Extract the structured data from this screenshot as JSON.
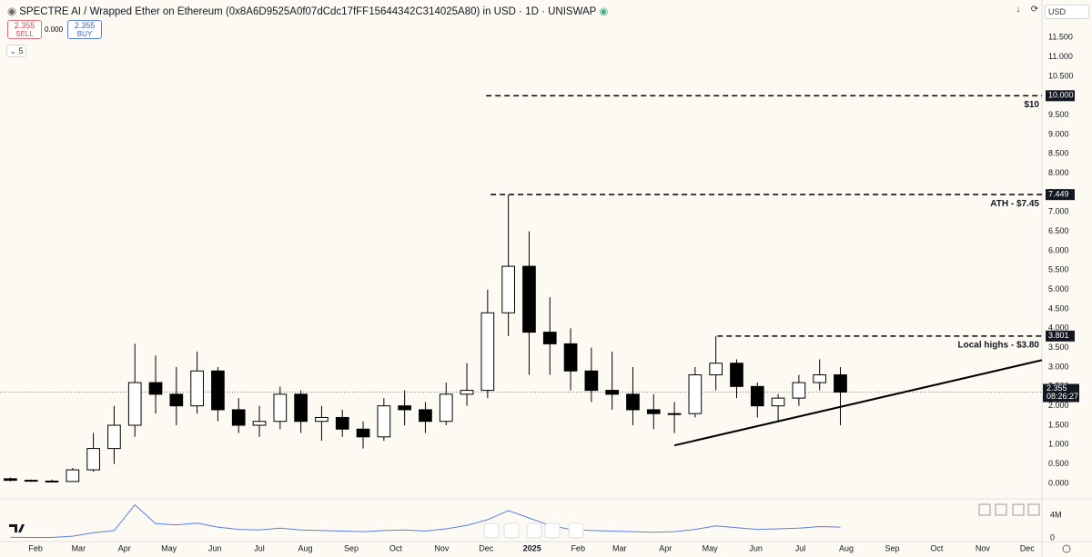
{
  "header": {
    "title": "SPECTRE AI / Wrapped Ether on Ethereum (0x8A6D9525A0f07dCdc17fFF15644342C314025A80) in USD · 1D · UNISWAP",
    "sell_price": "2.355",
    "sell_label": "SELL",
    "spread": "0.000",
    "buy_price": "2.355",
    "buy_label": "BUY",
    "indicators": "5",
    "currency": "USD"
  },
  "chart_data": [
    {
      "type": "candlestick",
      "x": [
        "2024-01-15",
        "2024-01-29",
        "2024-02-12",
        "2024-02-26",
        "2024-03-11",
        "2024-03-25",
        "2024-04-08",
        "2024-04-22",
        "2024-05-06",
        "2024-05-20",
        "2024-06-03",
        "2024-06-17",
        "2024-07-01",
        "2024-07-15",
        "2024-07-29",
        "2024-08-12",
        "2024-08-26",
        "2024-09-09",
        "2024-09-23",
        "2024-10-07",
        "2024-10-21",
        "2024-11-04",
        "2024-11-18",
        "2024-12-02",
        "2024-12-16",
        "2024-12-30",
        "2025-01-13",
        "2025-01-27",
        "2025-02-10",
        "2025-02-24",
        "2025-03-10",
        "2025-03-24",
        "2025-04-07",
        "2025-04-21",
        "2025-05-05",
        "2025-05-19",
        "2025-06-02",
        "2025-06-16",
        "2025-06-30",
        "2025-07-14",
        "2025-07-28"
      ],
      "open": [
        0.12,
        0.08,
        0.06,
        0.05,
        0.35,
        0.9,
        1.5,
        2.6,
        2.3,
        2.0,
        2.9,
        1.9,
        1.5,
        1.6,
        2.3,
        1.6,
        1.7,
        1.4,
        1.2,
        2.0,
        1.9,
        1.6,
        2.3,
        2.4,
        4.4,
        5.6,
        3.9,
        3.6,
        2.9,
        2.4,
        2.3,
        1.9,
        1.8,
        1.8,
        2.8,
        3.1,
        2.5,
        2.0,
        2.2,
        2.6,
        2.8
      ],
      "high": [
        0.15,
        0.1,
        0.1,
        0.4,
        1.3,
        2.0,
        3.6,
        3.3,
        3.0,
        3.4,
        3.0,
        2.2,
        2.0,
        2.5,
        2.4,
        2.0,
        1.9,
        1.6,
        2.2,
        2.4,
        2.1,
        2.6,
        3.1,
        5.0,
        7.45,
        6.5,
        4.8,
        4.0,
        3.5,
        3.4,
        3.0,
        2.3,
        2.1,
        3.0,
        3.8,
        3.2,
        2.6,
        2.3,
        2.8,
        3.2,
        3.0
      ],
      "low": [
        0.05,
        0.04,
        0.03,
        0.05,
        0.3,
        0.5,
        1.2,
        1.8,
        1.5,
        1.8,
        1.6,
        1.3,
        1.2,
        1.4,
        1.3,
        1.1,
        1.2,
        0.9,
        1.1,
        1.5,
        1.3,
        1.5,
        2.0,
        2.2,
        3.8,
        2.8,
        2.8,
        2.4,
        2.1,
        1.9,
        1.5,
        1.4,
        1.3,
        1.7,
        2.4,
        2.2,
        1.7,
        1.6,
        2.0,
        2.4,
        1.5
      ],
      "close": [
        0.08,
        0.06,
        0.05,
        0.35,
        0.9,
        1.5,
        2.6,
        2.3,
        2.0,
        2.9,
        1.9,
        1.5,
        1.6,
        2.3,
        1.6,
        1.7,
        1.4,
        1.2,
        2.0,
        1.9,
        1.6,
        2.3,
        2.4,
        4.4,
        5.6,
        3.9,
        3.6,
        2.9,
        2.4,
        2.3,
        1.9,
        1.8,
        1.8,
        2.8,
        3.1,
        2.5,
        2.0,
        2.2,
        2.6,
        2.8,
        2.355
      ],
      "up_color": "#ffffff",
      "down_color": "#000000",
      "wick_color": "#000000",
      "xlim": [
        "2024-01-08",
        "2025-12-11"
      ],
      "xticks": [
        {
          "value": "2024-02-01",
          "label": "Feb"
        },
        {
          "value": "2024-03-01",
          "label": "Mar"
        },
        {
          "value": "2024-04-01",
          "label": "Apr"
        },
        {
          "value": "2024-05-01",
          "label": "May"
        },
        {
          "value": "2024-06-01",
          "label": "Jun"
        },
        {
          "value": "2024-07-01",
          "label": "Jul"
        },
        {
          "value": "2024-08-01",
          "label": "Aug"
        },
        {
          "value": "2024-09-01",
          "label": "Sep"
        },
        {
          "value": "2024-10-01",
          "label": "Oct"
        },
        {
          "value": "2024-11-01",
          "label": "Nov"
        },
        {
          "value": "2024-12-01",
          "label": "Dec"
        },
        {
          "value": "2025-01-01",
          "label": "2025"
        },
        {
          "value": "2025-02-01",
          "label": "Feb"
        },
        {
          "value": "2025-03-01",
          "label": "Mar"
        },
        {
          "value": "2025-04-01",
          "label": "Apr"
        },
        {
          "value": "2025-05-01",
          "label": "May"
        },
        {
          "value": "2025-06-01",
          "label": "Jun"
        },
        {
          "value": "2025-07-01",
          "label": "Jul"
        },
        {
          "value": "2025-08-01",
          "label": "Aug"
        },
        {
          "value": "2025-09-01",
          "label": "Sep"
        },
        {
          "value": "2025-10-01",
          "label": "Oct"
        },
        {
          "value": "2025-11-01",
          "label": "Nov"
        },
        {
          "value": "2025-12-01",
          "label": "Dec"
        }
      ],
      "ylim": [
        -0.375,
        12.0
      ],
      "yticks": [
        {
          "value": 0,
          "label": "0.000"
        },
        {
          "value": 0.5,
          "label": "0.500"
        },
        {
          "value": 1,
          "label": "1.000"
        },
        {
          "value": 1.5,
          "label": "1.500"
        },
        {
          "value": 2,
          "label": "2.000"
        },
        {
          "value": 2.5,
          "label": "2.500"
        },
        {
          "value": 3,
          "label": "3.000"
        },
        {
          "value": 3.5,
          "label": "3.500"
        },
        {
          "value": 4,
          "label": "4.000"
        },
        {
          "value": 4.5,
          "label": "4.500"
        },
        {
          "value": 5,
          "label": "5.000"
        },
        {
          "value": 5.5,
          "label": "5.500"
        },
        {
          "value": 6,
          "label": "6.000"
        },
        {
          "value": 6.5,
          "label": "6.500"
        },
        {
          "value": 7,
          "label": "7.000"
        },
        {
          "value": 7.5,
          "label": "7.500"
        },
        {
          "value": 8,
          "label": "8.000"
        },
        {
          "value": 8.5,
          "label": "8.500"
        },
        {
          "value": 9,
          "label": "9.000"
        },
        {
          "value": 9.5,
          "label": "9.500"
        },
        {
          "value": 10,
          "label": "10.000"
        },
        {
          "value": 10.5,
          "label": "10.500"
        },
        {
          "value": 11,
          "label": "11.000"
        },
        {
          "value": 11.5,
          "label": "11.500"
        }
      ],
      "levels": [
        {
          "text": "$10",
          "value": 10,
          "tag": "10.000",
          "x_start": "2024-12-01"
        },
        {
          "text": "ATH - $7.45",
          "value": 7.449,
          "tag": "7.449",
          "x_start": "2024-12-04"
        },
        {
          "text": "Local highs - $3.80",
          "value": 3.801,
          "tag": "3.801",
          "x_start": "2025-05-06"
        }
      ],
      "trendline": {
        "x": [
          "2025-04-07",
          "2025-12-11"
        ],
        "y": [
          0.98,
          3.18
        ]
      },
      "last_price": {
        "value": 2.355,
        "label": "2.355",
        "countdown": "08:26:27"
      }
    },
    {
      "type": "line",
      "x": [
        "2024-01-15",
        "2024-01-29",
        "2024-02-12",
        "2024-02-26",
        "2024-03-11",
        "2024-03-25",
        "2024-04-08",
        "2024-04-22",
        "2024-05-06",
        "2024-05-20",
        "2024-06-03",
        "2024-06-17",
        "2024-07-01",
        "2024-07-15",
        "2024-07-29",
        "2024-08-12",
        "2024-08-26",
        "2024-09-09",
        "2024-09-23",
        "2024-10-07",
        "2024-10-21",
        "2024-11-04",
        "2024-11-18",
        "2024-12-02",
        "2024-12-16",
        "2024-12-30",
        "2025-01-13",
        "2025-01-27",
        "2025-02-10",
        "2025-02-24",
        "2025-03-10",
        "2025-03-24",
        "2025-04-07",
        "2025-04-21",
        "2025-05-05",
        "2025-05-19",
        "2025-06-02",
        "2025-06-16",
        "2025-06-30",
        "2025-07-14",
        "2025-07-28"
      ],
      "values": [
        100000,
        80000,
        80000,
        300000,
        900000,
        1300000,
        5800000,
        2500000,
        2300000,
        2600000,
        1900000,
        1500000,
        1400000,
        1700000,
        1400000,
        1300000,
        1200000,
        1100000,
        1300000,
        1400000,
        1200000,
        1600000,
        2200000,
        3200000,
        4800000,
        3500000,
        2200000,
        1500000,
        1300000,
        1200000,
        1100000,
        1000000,
        1100000,
        1500000,
        2100000,
        1800000,
        1500000,
        1600000,
        1700000,
        2000000,
        1900000
      ],
      "color": "#5b7fe0",
      "ylim": [
        0,
        6700000
      ],
      "yticks": [
        {
          "value": 0,
          "label": "0"
        },
        {
          "value": 4000000,
          "label": "4M"
        }
      ]
    }
  ]
}
